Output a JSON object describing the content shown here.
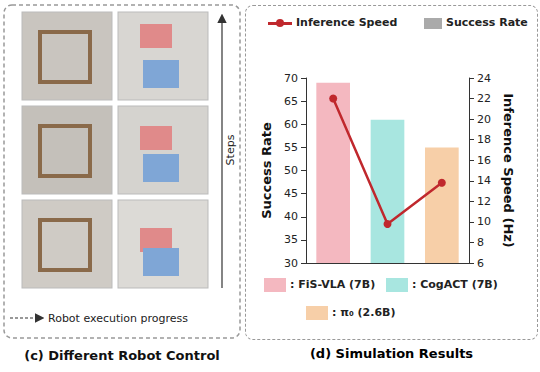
{
  "panel_c": {
    "title": "(c) Different Robot Control",
    "steps_label": "Steps",
    "progress_label": "Robot execution progress"
  },
  "chart_data": {
    "type": "bar",
    "title": "(d) Simulation Results",
    "categories": [
      "FiS-VLA (7B)",
      "CogACT (7B)",
      "π₀ (2.6B)"
    ],
    "category_legend_labels": [
      ": FiS-VLA (7B)",
      ": CogACT (7B)",
      ": π₀ (2.6B)"
    ],
    "series": [
      {
        "name": "Success Rate",
        "type": "bar",
        "color": "#aaaaaa",
        "colors": [
          "#f4b8c0",
          "#a8e6e0",
          "#f7cfa8"
        ],
        "values": [
          69,
          61,
          55
        ]
      },
      {
        "name": "Inference Speed",
        "type": "line",
        "color": "#c0282d",
        "marker": "circle",
        "axis": "y2",
        "values": [
          22,
          9.8,
          13.8
        ]
      }
    ],
    "ylabel": "Success Rate",
    "y2label": "Inference Speed (Hz)",
    "ylim": [
      30,
      70
    ],
    "yticks": [
      30,
      35,
      40,
      45,
      50,
      55,
      60,
      65,
      70
    ],
    "y2lim": [
      6,
      24
    ],
    "y2ticks": [
      6,
      8,
      10,
      12,
      14,
      16,
      18,
      20,
      22,
      24
    ],
    "tick_labels": "y",
    "grid": false,
    "legend": "top"
  }
}
